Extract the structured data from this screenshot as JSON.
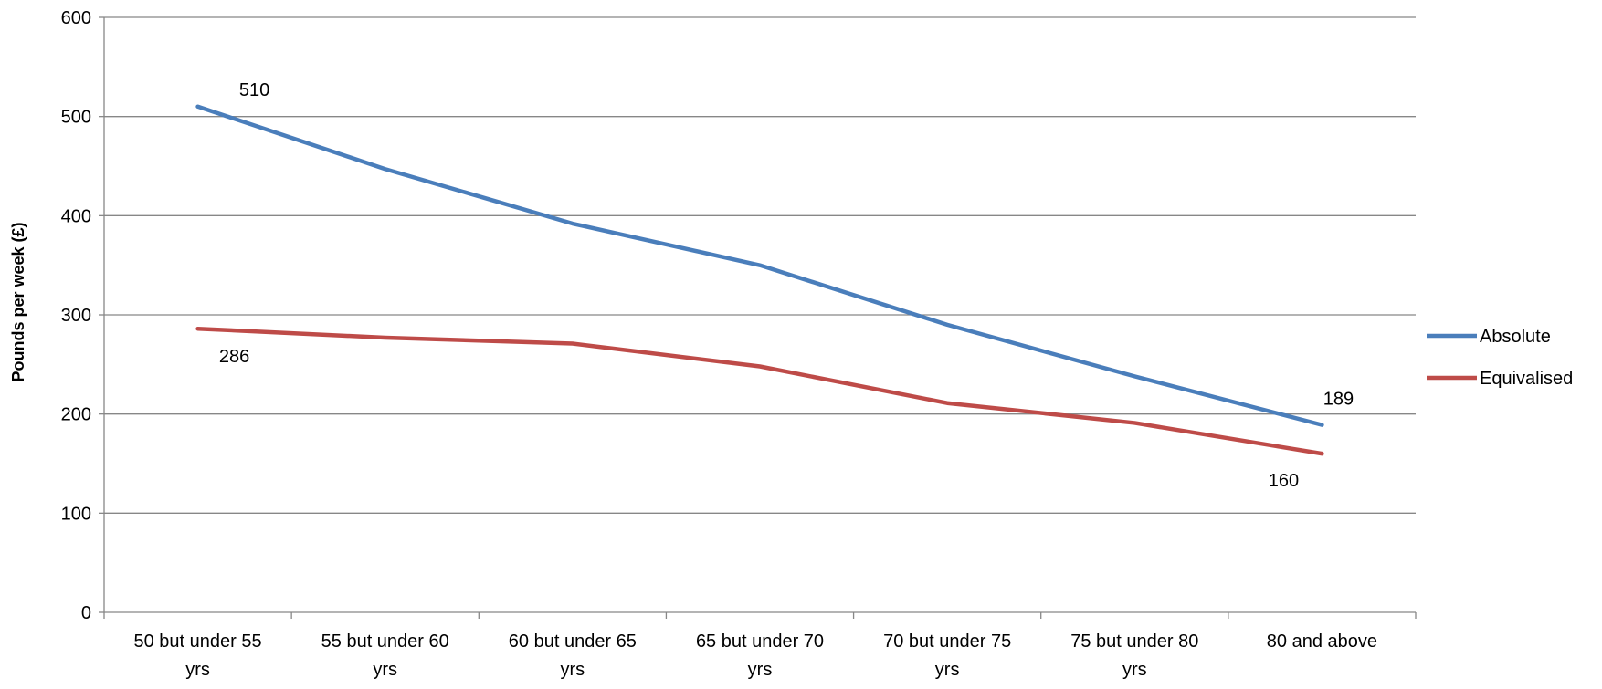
{
  "chart_data": {
    "type": "line",
    "title": "",
    "xlabel": "",
    "ylabel": "Pounds per week (£)",
    "ylim": [
      0,
      600
    ],
    "yticks": [
      0,
      100,
      200,
      300,
      400,
      500,
      600
    ],
    "categories": [
      [
        "50 but under 55",
        "yrs"
      ],
      [
        "55 but under 60",
        "yrs"
      ],
      [
        "60 but under 65",
        "yrs"
      ],
      [
        "65 but under 70",
        "yrs"
      ],
      [
        "70 but under 75",
        "yrs"
      ],
      [
        "75 but under 80",
        "yrs"
      ],
      [
        "80 and above"
      ]
    ],
    "series": [
      {
        "name": "Absolute",
        "color": "#4a7ebb",
        "values": [
          510,
          447,
          392,
          350,
          290,
          238,
          189
        ],
        "labels": [
          {
            "index": 0,
            "text": "510",
            "position": "above-right"
          },
          {
            "index": 6,
            "text": "189",
            "position": "above"
          }
        ]
      },
      {
        "name": "Equivalised",
        "color": "#be4b48",
        "values": [
          286,
          277,
          271,
          248,
          211,
          191,
          160
        ],
        "labels": [
          {
            "index": 0,
            "text": "286",
            "position": "below-right"
          },
          {
            "index": 6,
            "text": "160",
            "position": "below-left"
          }
        ]
      }
    ],
    "grid": true,
    "legend": "right"
  }
}
